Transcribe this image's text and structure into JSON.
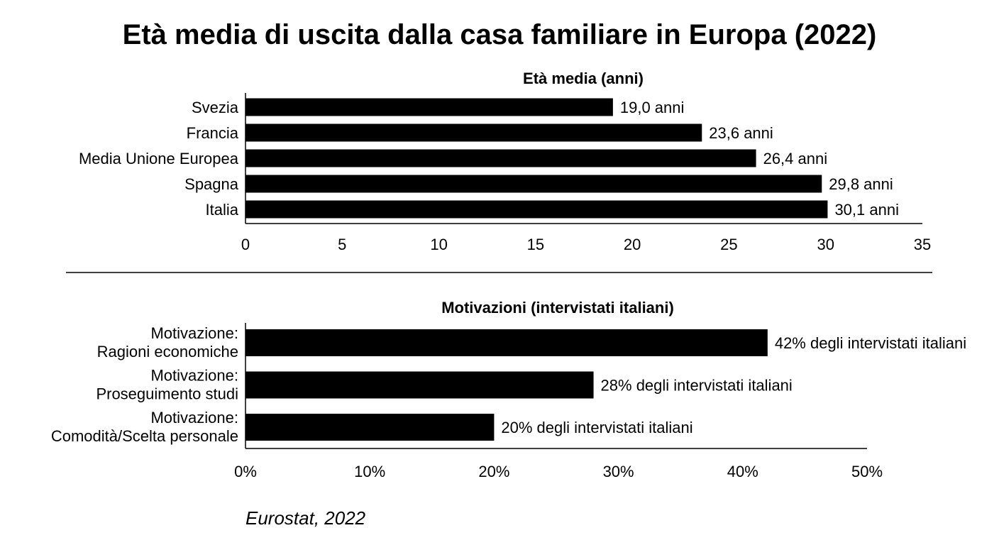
{
  "title": "Età media di uscita dalla casa familiare in Europa (2022)",
  "source": "Eurostat, 2022",
  "colors": {
    "bar": "#000000",
    "text": "#000000",
    "background": "#ffffff"
  },
  "chart_data": [
    {
      "type": "bar",
      "orientation": "horizontal",
      "title": "Età media (anni)",
      "categories": [
        "Svezia",
        "Francia",
        "Media Unione Europea",
        "Spagna",
        "Italia"
      ],
      "values": [
        19.0,
        23.6,
        26.4,
        29.8,
        30.1
      ],
      "data_labels": [
        "19,0 anni",
        "23,6 anni",
        "26,4 anni",
        "29,8 anni",
        "30,1 anni"
      ],
      "xlim": [
        0,
        35
      ],
      "ticks": [
        0,
        5,
        10,
        15,
        20,
        25,
        30,
        35
      ],
      "tick_labels": [
        "0",
        "5",
        "10",
        "15",
        "20",
        "25",
        "30",
        "35"
      ],
      "grid": false
    },
    {
      "type": "bar",
      "orientation": "horizontal",
      "title": "Motivazioni (intervistati italiani)",
      "categories": [
        [
          "Motivazione:",
          "Ragioni economiche"
        ],
        [
          "Motivazione:",
          "Proseguimento studi"
        ],
        [
          "Motivazione:",
          "Comodità/Scelta personale"
        ]
      ],
      "values": [
        42,
        28,
        20
      ],
      "data_labels": [
        "42% degli intervistati italiani",
        "28% degli intervistati italiani",
        "20% degli intervistati italiani"
      ],
      "xlim": [
        0,
        50
      ],
      "ticks": [
        0,
        10,
        20,
        30,
        40,
        50
      ],
      "tick_labels": [
        "0%",
        "10%",
        "20%",
        "30%",
        "40%",
        "50%"
      ],
      "grid": false
    }
  ]
}
